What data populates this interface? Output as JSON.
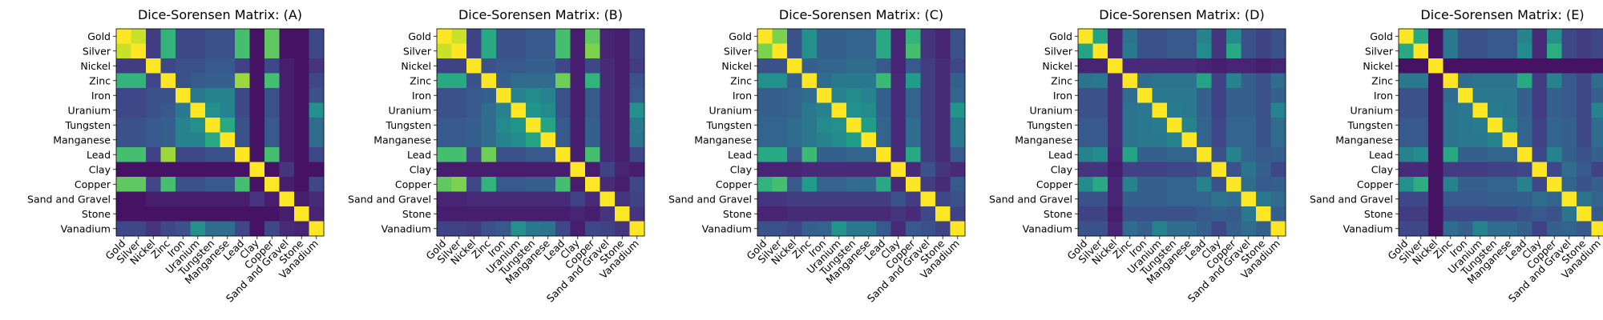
{
  "colors": {
    "colormap": "viridis",
    "viridis_stops": [
      "#440154",
      "#482878",
      "#3e4989",
      "#31688e",
      "#26828e",
      "#1f9e89",
      "#35b779",
      "#6ece58",
      "#b5de2b",
      "#fde725"
    ],
    "axis": "#000000",
    "background": "#ffffff"
  },
  "chart_data": [
    {
      "type": "heatmap",
      "title": "Dice-Sorensen Matrix: (A)",
      "labels": [
        "Gold",
        "Silver",
        "Nickel",
        "Zinc",
        "Iron",
        "Uranium",
        "Tungsten",
        "Manganese",
        "Lead",
        "Clay",
        "Copper",
        "Sand and Gravel",
        "Stone",
        "Vanadium"
      ],
      "value_range": [
        0,
        1
      ],
      "matrix": [
        [
          1.0,
          0.92,
          0.18,
          0.65,
          0.22,
          0.22,
          0.25,
          0.25,
          0.7,
          0.05,
          0.75,
          0.05,
          0.05,
          0.22
        ],
        [
          0.92,
          1.0,
          0.18,
          0.65,
          0.22,
          0.22,
          0.25,
          0.25,
          0.7,
          0.05,
          0.75,
          0.05,
          0.05,
          0.22
        ],
        [
          0.18,
          0.18,
          1.0,
          0.22,
          0.25,
          0.25,
          0.28,
          0.28,
          0.2,
          0.05,
          0.22,
          0.08,
          0.05,
          0.15
        ],
        [
          0.65,
          0.65,
          0.22,
          1.0,
          0.25,
          0.28,
          0.3,
          0.3,
          0.85,
          0.05,
          0.7,
          0.08,
          0.05,
          0.22
        ],
        [
          0.22,
          0.22,
          0.25,
          0.25,
          1.0,
          0.4,
          0.45,
          0.45,
          0.22,
          0.05,
          0.25,
          0.08,
          0.05,
          0.25
        ],
        [
          0.22,
          0.22,
          0.25,
          0.28,
          0.4,
          1.0,
          0.5,
          0.45,
          0.22,
          0.05,
          0.25,
          0.08,
          0.05,
          0.5
        ],
        [
          0.25,
          0.25,
          0.28,
          0.3,
          0.45,
          0.5,
          1.0,
          0.6,
          0.25,
          0.05,
          0.28,
          0.08,
          0.05,
          0.35
        ],
        [
          0.25,
          0.25,
          0.28,
          0.3,
          0.45,
          0.45,
          0.6,
          1.0,
          0.25,
          0.05,
          0.28,
          0.08,
          0.05,
          0.35
        ],
        [
          0.7,
          0.7,
          0.2,
          0.85,
          0.22,
          0.22,
          0.25,
          0.25,
          1.0,
          0.05,
          0.7,
          0.08,
          0.05,
          0.22
        ],
        [
          0.05,
          0.05,
          0.05,
          0.05,
          0.05,
          0.05,
          0.05,
          0.05,
          0.05,
          1.0,
          0.05,
          0.15,
          0.05,
          0.05
        ],
        [
          0.75,
          0.75,
          0.22,
          0.7,
          0.25,
          0.25,
          0.28,
          0.28,
          0.7,
          0.05,
          1.0,
          0.08,
          0.05,
          0.22
        ],
        [
          0.05,
          0.05,
          0.08,
          0.08,
          0.08,
          0.08,
          0.08,
          0.08,
          0.08,
          0.15,
          0.08,
          1.0,
          0.08,
          0.12
        ],
        [
          0.05,
          0.05,
          0.05,
          0.05,
          0.05,
          0.05,
          0.05,
          0.05,
          0.05,
          0.05,
          0.05,
          0.08,
          1.0,
          0.1
        ],
        [
          0.22,
          0.22,
          0.15,
          0.22,
          0.25,
          0.5,
          0.35,
          0.35,
          0.22,
          0.05,
          0.22,
          0.12,
          0.1,
          1.0
        ]
      ]
    },
    {
      "type": "heatmap",
      "title": "Dice-Sorensen Matrix: (B)",
      "labels": [
        "Gold",
        "Silver",
        "Nickel",
        "Zinc",
        "Iron",
        "Uranium",
        "Tungsten",
        "Manganese",
        "Lead",
        "Clay",
        "Copper",
        "Sand and Gravel",
        "Stone",
        "Vanadium"
      ],
      "value_range": [
        0,
        1
      ],
      "matrix": [
        [
          1.0,
          0.92,
          0.2,
          0.6,
          0.25,
          0.25,
          0.28,
          0.28,
          0.7,
          0.08,
          0.75,
          0.1,
          0.08,
          0.2
        ],
        [
          0.92,
          1.0,
          0.2,
          0.6,
          0.25,
          0.25,
          0.28,
          0.28,
          0.7,
          0.08,
          0.8,
          0.1,
          0.08,
          0.2
        ],
        [
          0.2,
          0.2,
          1.0,
          0.25,
          0.28,
          0.28,
          0.3,
          0.3,
          0.22,
          0.08,
          0.22,
          0.12,
          0.08,
          0.18
        ],
        [
          0.6,
          0.6,
          0.25,
          1.0,
          0.3,
          0.35,
          0.35,
          0.35,
          0.78,
          0.08,
          0.65,
          0.12,
          0.08,
          0.25
        ],
        [
          0.25,
          0.25,
          0.28,
          0.3,
          1.0,
          0.45,
          0.48,
          0.45,
          0.25,
          0.08,
          0.28,
          0.12,
          0.08,
          0.28
        ],
        [
          0.25,
          0.25,
          0.28,
          0.35,
          0.45,
          1.0,
          0.52,
          0.48,
          0.25,
          0.08,
          0.28,
          0.12,
          0.08,
          0.5
        ],
        [
          0.28,
          0.28,
          0.3,
          0.35,
          0.48,
          0.52,
          1.0,
          0.58,
          0.28,
          0.08,
          0.3,
          0.12,
          0.08,
          0.4
        ],
        [
          0.28,
          0.28,
          0.3,
          0.35,
          0.45,
          0.48,
          0.58,
          1.0,
          0.28,
          0.08,
          0.3,
          0.12,
          0.08,
          0.38
        ],
        [
          0.7,
          0.7,
          0.22,
          0.78,
          0.25,
          0.25,
          0.28,
          0.28,
          1.0,
          0.08,
          0.7,
          0.12,
          0.08,
          0.22
        ],
        [
          0.08,
          0.08,
          0.08,
          0.08,
          0.08,
          0.08,
          0.08,
          0.08,
          0.08,
          1.0,
          0.08,
          0.2,
          0.1,
          0.08
        ],
        [
          0.75,
          0.8,
          0.22,
          0.65,
          0.28,
          0.28,
          0.3,
          0.3,
          0.7,
          0.08,
          1.0,
          0.12,
          0.08,
          0.22
        ],
        [
          0.1,
          0.1,
          0.12,
          0.12,
          0.12,
          0.12,
          0.12,
          0.12,
          0.12,
          0.2,
          0.12,
          1.0,
          0.15,
          0.2
        ],
        [
          0.08,
          0.08,
          0.08,
          0.08,
          0.08,
          0.08,
          0.08,
          0.08,
          0.08,
          0.1,
          0.08,
          0.15,
          1.0,
          0.15
        ],
        [
          0.2,
          0.2,
          0.18,
          0.25,
          0.28,
          0.5,
          0.4,
          0.38,
          0.22,
          0.08,
          0.22,
          0.2,
          0.15,
          1.0
        ]
      ]
    },
    {
      "type": "heatmap",
      "title": "Dice-Sorensen Matrix: (C)",
      "labels": [
        "Gold",
        "Silver",
        "Nickel",
        "Zinc",
        "Iron",
        "Uranium",
        "Tungsten",
        "Manganese",
        "Lead",
        "Clay",
        "Copper",
        "Sand and Gravel",
        "Stone",
        "Vanadium"
      ],
      "value_range": [
        0,
        1
      ],
      "matrix": [
        [
          1.0,
          0.8,
          0.25,
          0.5,
          0.3,
          0.3,
          0.32,
          0.32,
          0.6,
          0.1,
          0.65,
          0.15,
          0.1,
          0.25
        ],
        [
          0.8,
          1.0,
          0.25,
          0.5,
          0.3,
          0.3,
          0.32,
          0.32,
          0.6,
          0.1,
          0.7,
          0.15,
          0.1,
          0.25
        ],
        [
          0.25,
          0.25,
          1.0,
          0.3,
          0.32,
          0.32,
          0.35,
          0.35,
          0.28,
          0.1,
          0.28,
          0.18,
          0.12,
          0.22
        ],
        [
          0.5,
          0.5,
          0.3,
          1.0,
          0.35,
          0.4,
          0.4,
          0.4,
          0.68,
          0.12,
          0.55,
          0.18,
          0.12,
          0.3
        ],
        [
          0.3,
          0.3,
          0.32,
          0.35,
          1.0,
          0.45,
          0.48,
          0.45,
          0.3,
          0.12,
          0.32,
          0.18,
          0.12,
          0.32
        ],
        [
          0.3,
          0.3,
          0.32,
          0.4,
          0.45,
          1.0,
          0.5,
          0.48,
          0.3,
          0.12,
          0.32,
          0.18,
          0.12,
          0.52
        ],
        [
          0.32,
          0.32,
          0.35,
          0.4,
          0.48,
          0.5,
          1.0,
          0.55,
          0.32,
          0.12,
          0.35,
          0.18,
          0.12,
          0.4
        ],
        [
          0.32,
          0.32,
          0.35,
          0.4,
          0.45,
          0.48,
          0.55,
          1.0,
          0.32,
          0.12,
          0.35,
          0.18,
          0.12,
          0.4
        ],
        [
          0.6,
          0.6,
          0.28,
          0.68,
          0.3,
          0.3,
          0.32,
          0.32,
          1.0,
          0.12,
          0.6,
          0.18,
          0.12,
          0.28
        ],
        [
          0.1,
          0.1,
          0.1,
          0.12,
          0.12,
          0.12,
          0.12,
          0.12,
          0.12,
          1.0,
          0.12,
          0.25,
          0.15,
          0.12
        ],
        [
          0.65,
          0.7,
          0.28,
          0.55,
          0.32,
          0.32,
          0.35,
          0.35,
          0.6,
          0.12,
          1.0,
          0.18,
          0.12,
          0.28
        ],
        [
          0.15,
          0.15,
          0.18,
          0.18,
          0.18,
          0.18,
          0.18,
          0.18,
          0.18,
          0.25,
          0.18,
          1.0,
          0.22,
          0.25
        ],
        [
          0.1,
          0.1,
          0.12,
          0.12,
          0.12,
          0.12,
          0.12,
          0.12,
          0.12,
          0.15,
          0.12,
          0.22,
          1.0,
          0.2
        ],
        [
          0.25,
          0.25,
          0.22,
          0.3,
          0.32,
          0.52,
          0.4,
          0.4,
          0.28,
          0.12,
          0.28,
          0.25,
          0.2,
          1.0
        ]
      ]
    },
    {
      "type": "heatmap",
      "title": "Dice-Sorensen Matrix: (D)",
      "labels": [
        "Gold",
        "Silver",
        "Nickel",
        "Zinc",
        "Iron",
        "Uranium",
        "Tungsten",
        "Manganese",
        "Lead",
        "Clay",
        "Copper",
        "Sand and Gravel",
        "Stone",
        "Vanadium"
      ],
      "value_range": [
        0,
        1
      ],
      "matrix": [
        [
          1.0,
          0.58,
          0.1,
          0.38,
          0.25,
          0.25,
          0.28,
          0.28,
          0.45,
          0.15,
          0.48,
          0.25,
          0.2,
          0.25
        ],
        [
          0.58,
          1.0,
          0.1,
          0.4,
          0.25,
          0.25,
          0.28,
          0.28,
          0.48,
          0.15,
          0.6,
          0.25,
          0.2,
          0.25
        ],
        [
          0.1,
          0.1,
          1.0,
          0.12,
          0.12,
          0.12,
          0.12,
          0.12,
          0.1,
          0.08,
          0.1,
          0.1,
          0.08,
          0.1
        ],
        [
          0.38,
          0.4,
          0.12,
          1.0,
          0.35,
          0.38,
          0.38,
          0.38,
          0.58,
          0.2,
          0.45,
          0.3,
          0.25,
          0.35
        ],
        [
          0.25,
          0.25,
          0.12,
          0.35,
          1.0,
          0.4,
          0.4,
          0.4,
          0.3,
          0.2,
          0.3,
          0.3,
          0.25,
          0.3
        ],
        [
          0.25,
          0.25,
          0.12,
          0.38,
          0.4,
          1.0,
          0.42,
          0.4,
          0.3,
          0.2,
          0.3,
          0.3,
          0.25,
          0.45
        ],
        [
          0.28,
          0.28,
          0.12,
          0.38,
          0.4,
          0.42,
          1.0,
          0.45,
          0.32,
          0.22,
          0.32,
          0.32,
          0.25,
          0.35
        ],
        [
          0.28,
          0.28,
          0.12,
          0.38,
          0.4,
          0.4,
          0.45,
          1.0,
          0.32,
          0.22,
          0.32,
          0.32,
          0.25,
          0.35
        ],
        [
          0.45,
          0.48,
          0.1,
          0.58,
          0.3,
          0.3,
          0.32,
          0.32,
          1.0,
          0.25,
          0.45,
          0.32,
          0.28,
          0.3
        ],
        [
          0.15,
          0.15,
          0.08,
          0.2,
          0.2,
          0.2,
          0.22,
          0.22,
          0.25,
          1.0,
          0.25,
          0.38,
          0.3,
          0.22
        ],
        [
          0.48,
          0.6,
          0.1,
          0.45,
          0.3,
          0.3,
          0.32,
          0.32,
          0.45,
          0.25,
          1.0,
          0.35,
          0.28,
          0.3
        ],
        [
          0.25,
          0.25,
          0.1,
          0.3,
          0.3,
          0.3,
          0.32,
          0.32,
          0.32,
          0.38,
          0.35,
          1.0,
          0.4,
          0.35
        ],
        [
          0.2,
          0.2,
          0.08,
          0.25,
          0.25,
          0.25,
          0.25,
          0.25,
          0.28,
          0.3,
          0.28,
          0.4,
          1.0,
          0.3
        ],
        [
          0.25,
          0.25,
          0.1,
          0.35,
          0.3,
          0.45,
          0.35,
          0.35,
          0.3,
          0.22,
          0.3,
          0.35,
          0.3,
          1.0
        ]
      ]
    },
    {
      "type": "heatmap",
      "title": "Dice-Sorensen Matrix: (E)",
      "labels": [
        "Gold",
        "Silver",
        "Nickel",
        "Zinc",
        "Iron",
        "Uranium",
        "Tungsten",
        "Manganese",
        "Lead",
        "Clay",
        "Copper",
        "Sand and Gravel",
        "Stone",
        "Vanadium"
      ],
      "value_range": [
        0,
        1
      ],
      "matrix": [
        [
          1.0,
          0.6,
          0.05,
          0.4,
          0.25,
          0.25,
          0.28,
          0.28,
          0.45,
          0.12,
          0.5,
          0.22,
          0.18,
          0.22
        ],
        [
          0.6,
          1.0,
          0.05,
          0.4,
          0.25,
          0.25,
          0.28,
          0.28,
          0.48,
          0.12,
          0.62,
          0.22,
          0.18,
          0.22
        ],
        [
          0.05,
          0.05,
          1.0,
          0.05,
          0.05,
          0.05,
          0.05,
          0.05,
          0.05,
          0.05,
          0.05,
          0.05,
          0.05,
          0.05
        ],
        [
          0.4,
          0.4,
          0.05,
          1.0,
          0.35,
          0.38,
          0.38,
          0.38,
          0.6,
          0.18,
          0.45,
          0.28,
          0.22,
          0.35
        ],
        [
          0.25,
          0.25,
          0.05,
          0.35,
          1.0,
          0.4,
          0.4,
          0.4,
          0.3,
          0.18,
          0.3,
          0.28,
          0.22,
          0.3
        ],
        [
          0.25,
          0.25,
          0.05,
          0.38,
          0.4,
          1.0,
          0.42,
          0.4,
          0.3,
          0.18,
          0.3,
          0.28,
          0.22,
          0.45
        ],
        [
          0.28,
          0.28,
          0.05,
          0.38,
          0.4,
          0.42,
          1.0,
          0.45,
          0.32,
          0.2,
          0.32,
          0.3,
          0.22,
          0.35
        ],
        [
          0.28,
          0.28,
          0.05,
          0.38,
          0.4,
          0.4,
          0.45,
          1.0,
          0.32,
          0.2,
          0.32,
          0.3,
          0.22,
          0.35
        ],
        [
          0.45,
          0.48,
          0.05,
          0.6,
          0.3,
          0.3,
          0.32,
          0.32,
          1.0,
          0.22,
          0.45,
          0.3,
          0.25,
          0.3
        ],
        [
          0.12,
          0.12,
          0.05,
          0.18,
          0.18,
          0.18,
          0.2,
          0.2,
          0.22,
          1.0,
          0.22,
          0.35,
          0.28,
          0.2
        ],
        [
          0.5,
          0.62,
          0.05,
          0.45,
          0.3,
          0.3,
          0.32,
          0.32,
          0.45,
          0.22,
          1.0,
          0.32,
          0.25,
          0.3
        ],
        [
          0.22,
          0.22,
          0.05,
          0.28,
          0.28,
          0.28,
          0.3,
          0.3,
          0.3,
          0.35,
          0.32,
          1.0,
          0.38,
          0.32
        ],
        [
          0.18,
          0.18,
          0.05,
          0.22,
          0.22,
          0.22,
          0.22,
          0.22,
          0.25,
          0.28,
          0.25,
          0.38,
          1.0,
          0.28
        ],
        [
          0.22,
          0.22,
          0.05,
          0.35,
          0.3,
          0.45,
          0.35,
          0.35,
          0.3,
          0.2,
          0.3,
          0.32,
          0.28,
          1.0
        ]
      ]
    }
  ]
}
